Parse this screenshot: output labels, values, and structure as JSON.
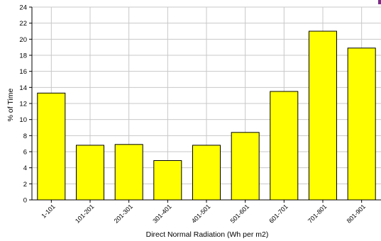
{
  "colors": {
    "bar_fill": "#ffff00",
    "bar_stroke": "#000000",
    "grid": "#c8c8c8",
    "background": "#ffffff",
    "corner_mark": "#7a2d8a"
  },
  "chart_data": {
    "type": "bar",
    "title": "",
    "xlabel": "Direct Normal Radiation (Wh per m2)",
    "ylabel": "% of Time",
    "ylim": [
      0,
      24
    ],
    "y_ticks": [
      0,
      2,
      4,
      6,
      8,
      10,
      12,
      14,
      16,
      18,
      20,
      22,
      24
    ],
    "categories": [
      "1-101",
      "101-201",
      "201-301",
      "301-401",
      "401-501",
      "501-601",
      "601-701",
      "701-801",
      "801-901"
    ],
    "values": [
      13.3,
      6.8,
      6.9,
      4.9,
      6.8,
      8.4,
      13.5,
      21.0,
      18.9
    ],
    "grid": true,
    "legend": "none"
  }
}
